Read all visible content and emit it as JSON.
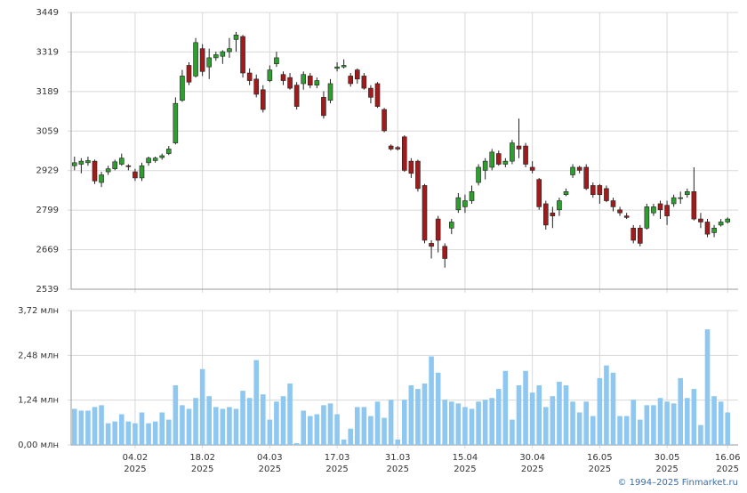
{
  "chart_data": [
    {
      "type": "candlestick",
      "up_color": "#2e9e2e",
      "down_color": "#a01c1c",
      "open": [
        2945,
        2950,
        2955,
        2960,
        2890,
        2925,
        2935,
        2950,
        2945,
        2925,
        2905,
        2955,
        2962,
        2972,
        2985,
        3020,
        3160,
        3275,
        3240,
        3330,
        3270,
        3300,
        3305,
        3320,
        3360,
        3370,
        3250,
        3230,
        3195,
        3225,
        3280,
        3245,
        3235,
        3210,
        3215,
        3240,
        3210,
        3170,
        3160,
        3265,
        3270,
        3240,
        3260,
        3240,
        3200,
        3215,
        3130,
        3010,
        3005,
        3040,
        2960,
        2960,
        2880,
        2690,
        2770,
        2680,
        2740,
        2800,
        2810,
        2830,
        2890,
        2930,
        2940,
        2985,
        2950,
        2960,
        3010,
        3010,
        2940,
        2900,
        2820,
        2790,
        2800,
        2850,
        2915,
        2940,
        2940,
        2880,
        2880,
        2870,
        2830,
        2800,
        2780,
        2740,
        2740,
        2740,
        2790,
        2820,
        2815,
        2820,
        2840,
        2850,
        2860,
        2770,
        2760,
        2725,
        2750,
        2760
      ],
      "high": [
        2975,
        2970,
        2975,
        2965,
        2925,
        2945,
        2965,
        2985,
        2950,
        2935,
        2955,
        2975,
        2975,
        2985,
        3010,
        3170,
        3260,
        3285,
        3365,
        3345,
        3330,
        3320,
        3325,
        3365,
        3385,
        3375,
        3265,
        3245,
        3210,
        3275,
        3320,
        3255,
        3250,
        3220,
        3255,
        3250,
        3235,
        3190,
        3230,
        3285,
        3295,
        3250,
        3265,
        3250,
        3210,
        3220,
        3135,
        3015,
        3010,
        3045,
        2970,
        2965,
        2885,
        2700,
        2780,
        2690,
        2770,
        2855,
        2850,
        2880,
        2950,
        2970,
        3000,
        2995,
        2970,
        3030,
        3100,
        3020,
        2960,
        2905,
        2830,
        2810,
        2840,
        2870,
        2950,
        2945,
        2950,
        2890,
        2885,
        2880,
        2840,
        2810,
        2790,
        2750,
        2750,
        2820,
        2820,
        2830,
        2830,
        2850,
        2860,
        2870,
        2940,
        2790,
        2770,
        2750,
        2770,
        2775
      ],
      "low": [
        2930,
        2920,
        2945,
        2885,
        2875,
        2915,
        2930,
        2945,
        2930,
        2895,
        2895,
        2945,
        2955,
        2965,
        2980,
        3015,
        3155,
        3210,
        3235,
        3240,
        3230,
        3290,
        3280,
        3300,
        3320,
        3235,
        3210,
        3170,
        3120,
        3220,
        3270,
        3210,
        3195,
        3130,
        3195,
        3200,
        3200,
        3100,
        3150,
        3255,
        3265,
        3205,
        3215,
        3195,
        3150,
        3135,
        3055,
        2995,
        2995,
        2925,
        2905,
        2860,
        2690,
        2640,
        2660,
        2610,
        2720,
        2790,
        2790,
        2820,
        2880,
        2900,
        2930,
        2945,
        2940,
        2950,
        2970,
        2940,
        2920,
        2800,
        2735,
        2740,
        2780,
        2845,
        2905,
        2920,
        2865,
        2840,
        2820,
        2825,
        2795,
        2780,
        2770,
        2690,
        2680,
        2735,
        2780,
        2770,
        2750,
        2810,
        2820,
        2840,
        2765,
        2740,
        2710,
        2710,
        2745,
        2755
      ],
      "close": [
        2955,
        2960,
        2962,
        2895,
        2915,
        2935,
        2958,
        2970,
        2942,
        2905,
        2945,
        2970,
        2970,
        2978,
        3000,
        3150,
        3240,
        3220,
        3350,
        3255,
        3300,
        3310,
        3320,
        3330,
        3375,
        3250,
        3225,
        3180,
        3130,
        3260,
        3300,
        3225,
        3200,
        3140,
        3245,
        3210,
        3225,
        3110,
        3215,
        3270,
        3275,
        3215,
        3230,
        3200,
        3170,
        3140,
        3060,
        3000,
        3000,
        2930,
        2920,
        2870,
        2700,
        2680,
        2700,
        2640,
        2760,
        2840,
        2830,
        2860,
        2940,
        2960,
        2990,
        2950,
        2960,
        3020,
        3000,
        2950,
        2930,
        2810,
        2750,
        2780,
        2830,
        2860,
        2940,
        2930,
        2870,
        2850,
        2850,
        2830,
        2810,
        2790,
        2775,
        2700,
        2690,
        2810,
        2810,
        2800,
        2780,
        2840,
        2840,
        2860,
        2770,
        2760,
        2720,
        2740,
        2760,
        2770
      ],
      "ylim": [
        2539,
        3449
      ],
      "yticks": [
        2539,
        2669,
        2799,
        2929,
        3059,
        3189,
        3319,
        3449
      ],
      "grid": true
    },
    {
      "type": "bar",
      "color": "#8ec8f0",
      "categories": [
        null,
        null,
        null,
        null,
        null,
        null,
        null,
        null,
        null,
        [
          "04.02",
          "2025"
        ],
        null,
        null,
        null,
        null,
        null,
        null,
        null,
        null,
        null,
        [
          "18.02",
          "2025"
        ],
        null,
        null,
        null,
        null,
        null,
        null,
        null,
        null,
        null,
        [
          "04.03",
          "2025"
        ],
        null,
        null,
        null,
        null,
        null,
        null,
        null,
        null,
        null,
        [
          "17.03",
          "2025"
        ],
        null,
        null,
        null,
        null,
        null,
        null,
        null,
        null,
        [
          "31.03",
          "2025"
        ],
        null,
        null,
        null,
        null,
        null,
        null,
        null,
        null,
        null,
        [
          "15.04",
          "2025"
        ],
        null,
        null,
        null,
        null,
        null,
        null,
        null,
        null,
        null,
        [
          "30.04",
          "2025"
        ],
        null,
        null,
        null,
        null,
        null,
        null,
        null,
        null,
        null,
        [
          "16.05",
          "2025"
        ],
        null,
        null,
        null,
        null,
        null,
        null,
        null,
        null,
        null,
        [
          "30.05",
          "2025"
        ],
        null,
        null,
        null,
        null,
        null,
        null,
        null,
        null,
        [
          "16.06",
          "2025"
        ]
      ],
      "values": [
        1.0,
        0.95,
        0.95,
        1.05,
        1.1,
        0.6,
        0.65,
        0.85,
        0.65,
        0.6,
        0.9,
        0.6,
        0.65,
        0.9,
        0.7,
        1.65,
        1.1,
        1.0,
        1.3,
        2.1,
        1.35,
        1.05,
        1.0,
        1.05,
        1.0,
        1.5,
        1.3,
        2.35,
        1.4,
        0.7,
        1.2,
        1.35,
        1.7,
        0.05,
        0.95,
        0.8,
        0.85,
        1.1,
        1.15,
        0.85,
        0.15,
        0.45,
        1.05,
        1.05,
        0.8,
        1.2,
        0.75,
        1.25,
        0.15,
        1.25,
        1.65,
        1.55,
        1.7,
        2.45,
        2.0,
        1.25,
        1.2,
        1.15,
        1.05,
        1.0,
        1.2,
        1.25,
        1.3,
        1.55,
        2.05,
        0.7,
        1.65,
        2.05,
        1.45,
        1.65,
        1.05,
        1.35,
        1.75,
        1.65,
        1.2,
        0.9,
        1.2,
        0.8,
        1.85,
        2.2,
        2.0,
        0.8,
        0.8,
        1.25,
        0.7,
        1.1,
        1.1,
        1.3,
        1.2,
        1.15,
        1.85,
        1.3,
        1.55,
        0.55,
        3.2,
        1.35,
        1.2,
        0.9
      ],
      "ylim": [
        0,
        3.72
      ],
      "yticks": [
        {
          "value": 0,
          "label": "0,00 млн"
        },
        {
          "value": 1.24,
          "label": "1,24 млн"
        },
        {
          "value": 2.48,
          "label": "2,48 млн"
        },
        {
          "value": 3.72,
          "label": "3,72 млн"
        }
      ],
      "grid": true
    }
  ],
  "footer": "© 1994–2025 Finmarket.ru"
}
